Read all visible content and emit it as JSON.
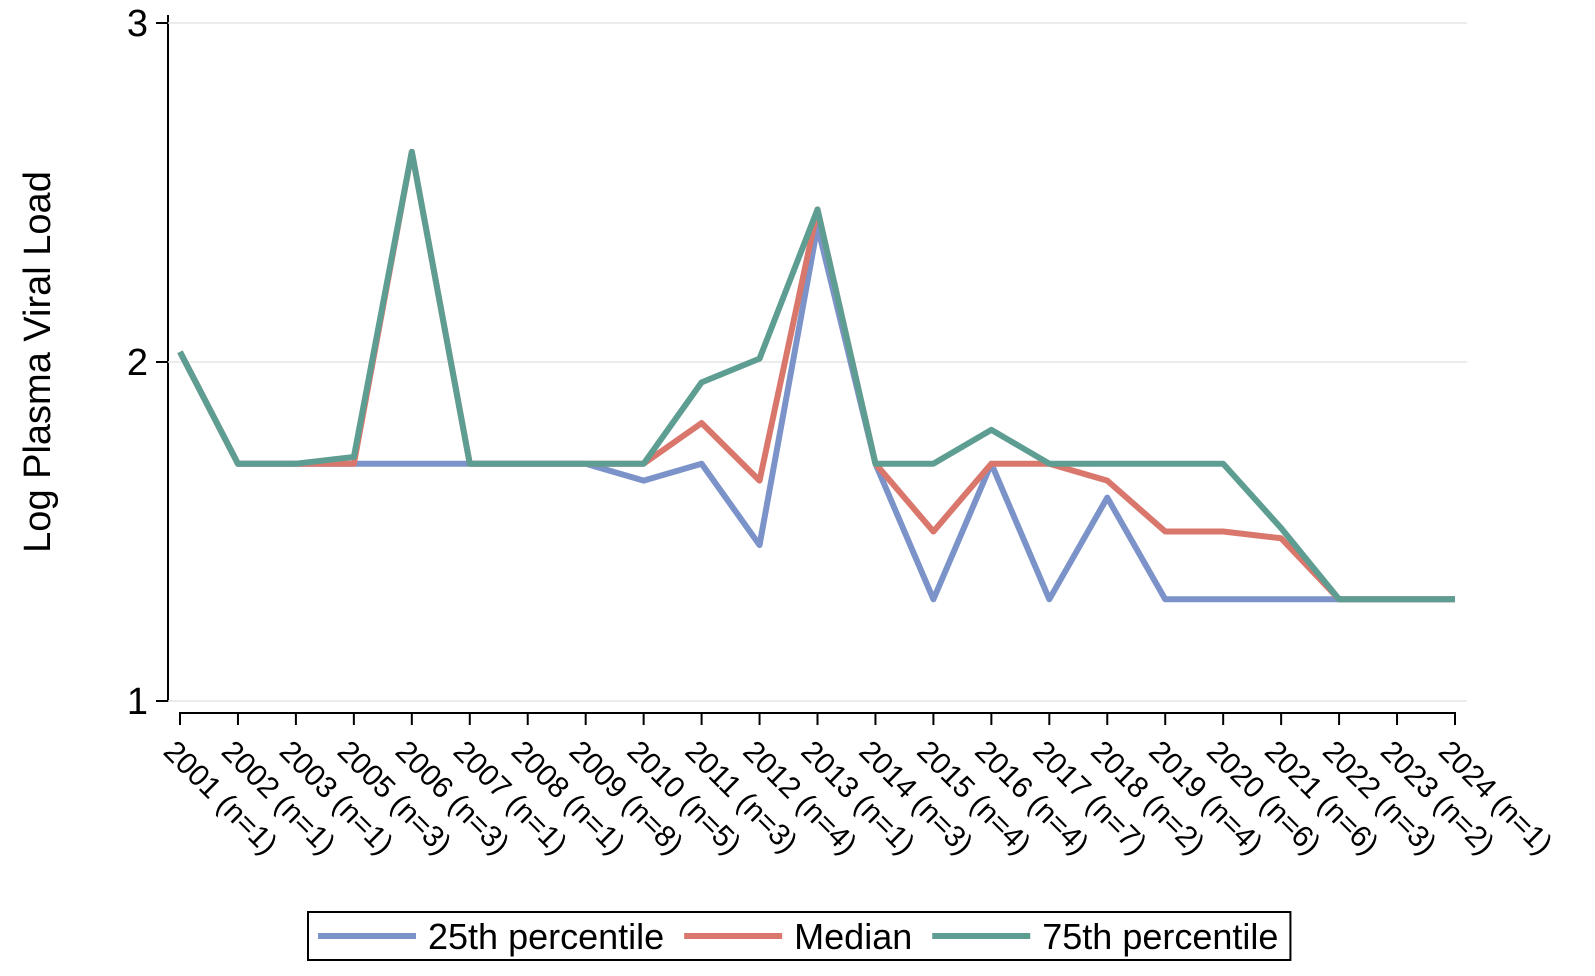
{
  "chart_data": {
    "type": "line",
    "y_label": "Log Plasma Viral Load",
    "categories": [
      "2001 (n=1)",
      "2002 (n=1)",
      "2003 (n=1)",
      "2005 (n=3)",
      "2006 (n=3)",
      "2007 (n=1)",
      "2008 (n=1)",
      "2009 (n=8)",
      "2010 (n=5)",
      "2011 (n=3)",
      "2012 (n=4)",
      "2013 (n=1)",
      "2014 (n=3)",
      "2015 (n=4)",
      "2016 (n=4)",
      "2017 (n=7)",
      "2018 (n=2)",
      "2019 (n=4)",
      "2020 (n=6)",
      "2021 (n=6)",
      "2022 (n=3)",
      "2023 (n=2)",
      "2024 (n=1)"
    ],
    "series": [
      {
        "name": "25th percentile",
        "color": "#7b93c9",
        "values": [
          2.03,
          1.7,
          1.7,
          1.7,
          1.7,
          1.7,
          1.7,
          1.7,
          1.65,
          1.7,
          1.46,
          2.4,
          1.7,
          1.3,
          1.7,
          1.3,
          1.6,
          1.3,
          1.3,
          1.3,
          1.3,
          1.3,
          1.3
        ]
      },
      {
        "name": "Median",
        "color": "#d9776c",
        "values": [
          2.03,
          1.7,
          1.7,
          1.7,
          2.62,
          1.7,
          1.7,
          1.7,
          1.7,
          1.82,
          1.65,
          2.45,
          1.7,
          1.5,
          1.7,
          1.7,
          1.65,
          1.5,
          1.5,
          1.48,
          1.3,
          1.3,
          1.3
        ]
      },
      {
        "name": "75th percentile",
        "color": "#5e9e92",
        "values": [
          2.03,
          1.7,
          1.7,
          1.72,
          2.62,
          1.7,
          1.7,
          1.7,
          1.7,
          1.94,
          2.01,
          2.45,
          1.7,
          1.7,
          1.8,
          1.7,
          1.7,
          1.7,
          1.7,
          1.51,
          1.3,
          1.3,
          1.3
        ]
      }
    ],
    "ylim": [
      1,
      3
    ],
    "yticks": [
      1,
      2,
      3
    ],
    "grid": true,
    "legend": "bottom"
  }
}
